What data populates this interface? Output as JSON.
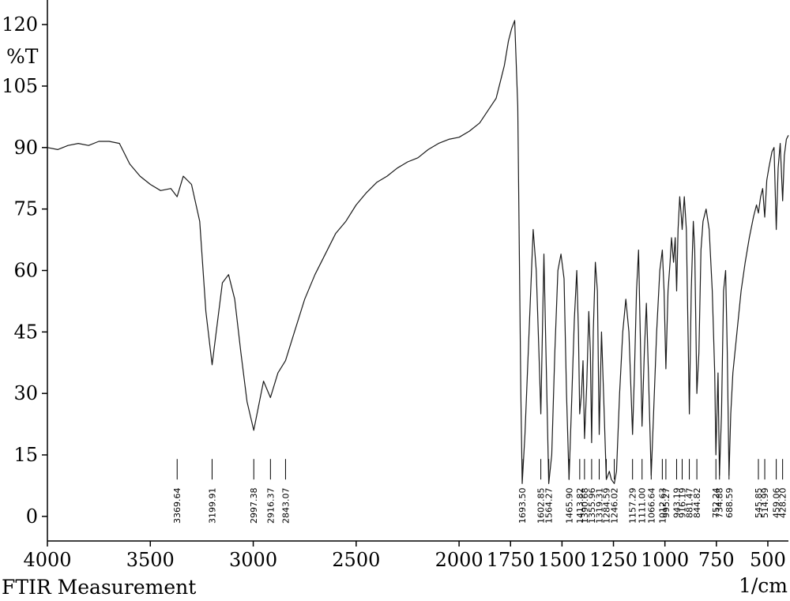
{
  "chart_data": {
    "type": "line",
    "title": "FTIR Measurement",
    "xlabel": "1/cm",
    "ylabel": "%T",
    "xlim": [
      4000,
      400
    ],
    "ylim": [
      -6,
      126
    ],
    "x_reversed": true,
    "grid": false,
    "xticks": [
      4000,
      3500,
      3000,
      2500,
      2000,
      1750,
      1500,
      1250,
      1000,
      750,
      500
    ],
    "yticks": [
      0,
      15,
      30,
      45,
      60,
      75,
      90,
      105,
      120
    ],
    "series": [
      {
        "points": [
          [
            4000,
            90
          ],
          [
            3950,
            89.5
          ],
          [
            3900,
            90.5
          ],
          [
            3850,
            91
          ],
          [
            3800,
            90.5
          ],
          [
            3750,
            91.5
          ],
          [
            3700,
            91.5
          ],
          [
            3650,
            91
          ],
          [
            3600,
            86
          ],
          [
            3550,
            83
          ],
          [
            3500,
            81
          ],
          [
            3450,
            79.5
          ],
          [
            3400,
            80
          ],
          [
            3369.64,
            78
          ],
          [
            3340,
            83
          ],
          [
            3300,
            81
          ],
          [
            3260,
            72
          ],
          [
            3230,
            50
          ],
          [
            3199.91,
            37
          ],
          [
            3180,
            45
          ],
          [
            3150,
            57
          ],
          [
            3120,
            59
          ],
          [
            3090,
            53
          ],
          [
            3060,
            40
          ],
          [
            3030,
            28
          ],
          [
            2997.38,
            21
          ],
          [
            2970,
            28
          ],
          [
            2950,
            33
          ],
          [
            2916.37,
            29
          ],
          [
            2880,
            35
          ],
          [
            2843.07,
            38
          ],
          [
            2800,
            45
          ],
          [
            2750,
            53
          ],
          [
            2700,
            59
          ],
          [
            2650,
            64
          ],
          [
            2600,
            69
          ],
          [
            2550,
            72
          ],
          [
            2500,
            76
          ],
          [
            2450,
            79
          ],
          [
            2400,
            81.5
          ],
          [
            2350,
            83
          ],
          [
            2300,
            85
          ],
          [
            2250,
            86.5
          ],
          [
            2200,
            87.5
          ],
          [
            2150,
            89.5
          ],
          [
            2100,
            91
          ],
          [
            2050,
            92
          ],
          [
            2000,
            92.5
          ],
          [
            1950,
            94
          ],
          [
            1900,
            96
          ],
          [
            1860,
            99
          ],
          [
            1820,
            102
          ],
          [
            1800,
            106
          ],
          [
            1780,
            110
          ],
          [
            1760,
            116
          ],
          [
            1745,
            119
          ],
          [
            1730,
            121
          ],
          [
            1715,
            100
          ],
          [
            1700,
            30
          ],
          [
            1693.5,
            8
          ],
          [
            1680,
            20
          ],
          [
            1660,
            45
          ],
          [
            1640,
            70
          ],
          [
            1625,
            60
          ],
          [
            1612,
            40
          ],
          [
            1602.85,
            25
          ],
          [
            1595,
            45
          ],
          [
            1588,
            64
          ],
          [
            1578,
            40
          ],
          [
            1564.27,
            8
          ],
          [
            1550,
            15
          ],
          [
            1535,
            40
          ],
          [
            1520,
            60
          ],
          [
            1505,
            64
          ],
          [
            1490,
            58
          ],
          [
            1478,
            30
          ],
          [
            1465.9,
            9
          ],
          [
            1455,
            25
          ],
          [
            1440,
            48
          ],
          [
            1428,
            60
          ],
          [
            1420,
            45
          ],
          [
            1413.82,
            25
          ],
          [
            1405,
            30
          ],
          [
            1398,
            38
          ],
          [
            1390.68,
            19
          ],
          [
            1380,
            32
          ],
          [
            1370,
            50
          ],
          [
            1362,
            40
          ],
          [
            1355.96,
            18
          ],
          [
            1348,
            45
          ],
          [
            1338,
            62
          ],
          [
            1328,
            55
          ],
          [
            1319.31,
            20
          ],
          [
            1308,
            45
          ],
          [
            1298,
            30
          ],
          [
            1284.59,
            9
          ],
          [
            1270,
            11
          ],
          [
            1260,
            9
          ],
          [
            1246.02,
            8
          ],
          [
            1235,
            11
          ],
          [
            1220,
            30
          ],
          [
            1205,
            45
          ],
          [
            1190,
            53
          ],
          [
            1175,
            45
          ],
          [
            1157.29,
            20
          ],
          [
            1148,
            35
          ],
          [
            1138,
            55
          ],
          [
            1128,
            65
          ],
          [
            1120,
            45
          ],
          [
            1111,
            22
          ],
          [
            1100,
            40
          ],
          [
            1090,
            52
          ],
          [
            1080,
            35
          ],
          [
            1066.64,
            10
          ],
          [
            1055,
            25
          ],
          [
            1040,
            45
          ],
          [
            1025,
            60
          ],
          [
            1012.63,
            65
          ],
          [
            1004,
            55
          ],
          [
            995.27,
            36
          ],
          [
            985,
            55
          ],
          [
            975,
            62
          ],
          [
            968,
            68
          ],
          [
            958,
            62
          ],
          [
            950,
            68
          ],
          [
            943.19,
            55
          ],
          [
            936,
            70
          ],
          [
            928,
            78
          ],
          [
            920,
            73
          ],
          [
            916.19,
            70
          ],
          [
            906,
            78
          ],
          [
            896,
            70
          ],
          [
            881.47,
            25
          ],
          [
            872,
            55
          ],
          [
            862,
            72
          ],
          [
            855,
            65
          ],
          [
            844.82,
            30
          ],
          [
            835,
            40
          ],
          [
            825,
            65
          ],
          [
            815,
            72
          ],
          [
            800,
            75
          ],
          [
            785,
            70
          ],
          [
            770,
            55
          ],
          [
            758,
            35
          ],
          [
            752.24,
            15
          ],
          [
            742,
            35
          ],
          [
            734.88,
            10
          ],
          [
            725,
            25
          ],
          [
            715,
            55
          ],
          [
            705,
            60
          ],
          [
            697,
            40
          ],
          [
            688.59,
            10
          ],
          [
            680,
            25
          ],
          [
            670,
            35
          ],
          [
            650,
            45
          ],
          [
            630,
            55
          ],
          [
            610,
            62
          ],
          [
            590,
            68
          ],
          [
            570,
            73
          ],
          [
            555,
            76
          ],
          [
            545.85,
            74
          ],
          [
            535,
            78
          ],
          [
            525,
            80
          ],
          [
            514.99,
            73
          ],
          [
            505,
            82
          ],
          [
            495,
            85
          ],
          [
            480,
            89
          ],
          [
            470,
            90
          ],
          [
            459.06,
            70
          ],
          [
            450,
            85
          ],
          [
            440,
            91
          ],
          [
            428.2,
            77
          ],
          [
            420,
            88
          ],
          [
            410,
            92
          ],
          [
            400,
            93
          ]
        ]
      }
    ],
    "peaks": [
      3369.64,
      3199.91,
      2997.38,
      2916.37,
      2843.07,
      1693.5,
      1602.85,
      1564.27,
      1465.9,
      1413.82,
      1390.68,
      1355.96,
      1319.31,
      1284.59,
      1246.02,
      1157.29,
      1111.0,
      1066.64,
      1012.63,
      995.27,
      943.19,
      916.19,
      881.47,
      844.82,
      752.24,
      734.88,
      688.59,
      545.85,
      514.99,
      459.06,
      428.2
    ],
    "peak_labels": [
      "3369.64",
      "3199.91",
      "2997.38",
      "2916.37",
      "2843.07",
      "1693.50",
      "1602.85",
      "1564.27",
      "1465.90",
      "1413.82",
      "1390.68",
      "1355.96",
      "1319.31",
      "1284.59",
      "1246.02",
      "1157.29",
      "1111.00",
      "1066.64",
      "1012.63",
      "995.27",
      "943.19",
      "916.19",
      "881.47",
      "844.82",
      "752.24",
      "734.88",
      "688.59",
      "545.85",
      "514.99",
      "459.06",
      "428.20"
    ]
  }
}
